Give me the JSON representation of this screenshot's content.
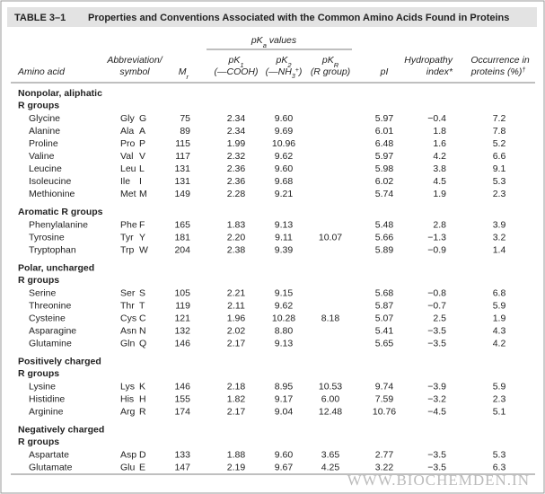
{
  "title": {
    "label": "TABLE 3–1",
    "text": "Properties and Conventions Associated with the Common Amino Acids Found in Proteins"
  },
  "header": {
    "pka_group": [
      "pK",
      "a",
      " values"
    ],
    "amino_acid": "Amino acid",
    "abbreviation": [
      "Abbreviation/",
      "symbol"
    ],
    "mr": [
      "M",
      "r"
    ],
    "pk1": [
      "pK",
      "1",
      "(—COOH)"
    ],
    "pk2": [
      "pK",
      "2",
      "(—NH",
      "3",
      "+",
      ")"
    ],
    "pkr": [
      "pK",
      "R",
      "(R group)"
    ],
    "pi": "pI",
    "hydropathy": [
      "Hydropathy",
      "index*"
    ],
    "occurrence": [
      "Occurrence in",
      "proteins (%)",
      "†"
    ]
  },
  "groups": [
    {
      "heading": [
        "Nonpolar, aliphatic",
        "R groups"
      ],
      "rows": [
        [
          "Glycine",
          "Gly",
          "G",
          "75",
          "2.34",
          "9.60",
          null,
          "5.97",
          "−0.4",
          "7.2"
        ],
        [
          "Alanine",
          "Ala",
          "A",
          "89",
          "2.34",
          "9.69",
          null,
          "6.01",
          "1.8",
          "7.8"
        ],
        [
          "Proline",
          "Pro",
          "P",
          "115",
          "1.99",
          "10.96",
          null,
          "6.48",
          "1.6",
          "5.2"
        ],
        [
          "Valine",
          "Val",
          "V",
          "117",
          "2.32",
          "9.62",
          null,
          "5.97",
          "4.2",
          "6.6"
        ],
        [
          "Leucine",
          "Leu",
          "L",
          "131",
          "2.36",
          "9.60",
          null,
          "5.98",
          "3.8",
          "9.1"
        ],
        [
          "Isoleucine",
          "Ile",
          "I",
          "131",
          "2.36",
          "9.68",
          null,
          "6.02",
          "4.5",
          "5.3"
        ],
        [
          "Methionine",
          "Met",
          "M",
          "149",
          "2.28",
          "9.21",
          null,
          "5.74",
          "1.9",
          "2.3"
        ]
      ]
    },
    {
      "heading": [
        "Aromatic R groups"
      ],
      "rows": [
        [
          "Phenylalanine",
          "Phe",
          "F",
          "165",
          "1.83",
          "9.13",
          null,
          "5.48",
          "2.8",
          "3.9"
        ],
        [
          "Tyrosine",
          "Tyr",
          "Y",
          "181",
          "2.20",
          "9.11",
          "10.07",
          "5.66",
          "−1.3",
          "3.2"
        ],
        [
          "Tryptophan",
          "Trp",
          "W",
          "204",
          "2.38",
          "9.39",
          null,
          "5.89",
          "−0.9",
          "1.4"
        ]
      ]
    },
    {
      "heading": [
        "Polar, uncharged",
        "R groups"
      ],
      "rows": [
        [
          "Serine",
          "Ser",
          "S",
          "105",
          "2.21",
          "9.15",
          null,
          "5.68",
          "−0.8",
          "6.8"
        ],
        [
          "Threonine",
          "Thr",
          "T",
          "119",
          "2.11",
          "9.62",
          null,
          "5.87",
          "−0.7",
          "5.9"
        ],
        [
          "Cysteine",
          "Cys",
          "C",
          "121",
          "1.96",
          "10.28",
          "8.18",
          "5.07",
          "2.5",
          "1.9"
        ],
        [
          "Asparagine",
          "Asn",
          "N",
          "132",
          "2.02",
          "8.80",
          null,
          "5.41",
          "−3.5",
          "4.3"
        ],
        [
          "Glutamine",
          "Gln",
          "Q",
          "146",
          "2.17",
          "9.13",
          null,
          "5.65",
          "−3.5",
          "4.2"
        ]
      ]
    },
    {
      "heading": [
        "Positively charged",
        "R groups"
      ],
      "rows": [
        [
          "Lysine",
          "Lys",
          "K",
          "146",
          "2.18",
          "8.95",
          "10.53",
          "9.74",
          "−3.9",
          "5.9"
        ],
        [
          "Histidine",
          "His",
          "H",
          "155",
          "1.82",
          "9.17",
          "6.00",
          "7.59",
          "−3.2",
          "2.3"
        ],
        [
          "Arginine",
          "Arg",
          "R",
          "174",
          "2.17",
          "9.04",
          "12.48",
          "10.76",
          "−4.5",
          "5.1"
        ]
      ]
    },
    {
      "heading": [
        "Negatively charged",
        "R groups"
      ],
      "rows": [
        [
          "Aspartate",
          "Asp",
          "D",
          "133",
          "1.88",
          "9.60",
          "3.65",
          "2.77",
          "−3.5",
          "5.3"
        ],
        [
          "Glutamate",
          "Glu",
          "E",
          "147",
          "2.19",
          "9.67",
          "4.25",
          "3.22",
          "−3.5",
          "6.3"
        ]
      ]
    }
  ],
  "watermark": "WWW.BIOCHEMDEN.IN"
}
